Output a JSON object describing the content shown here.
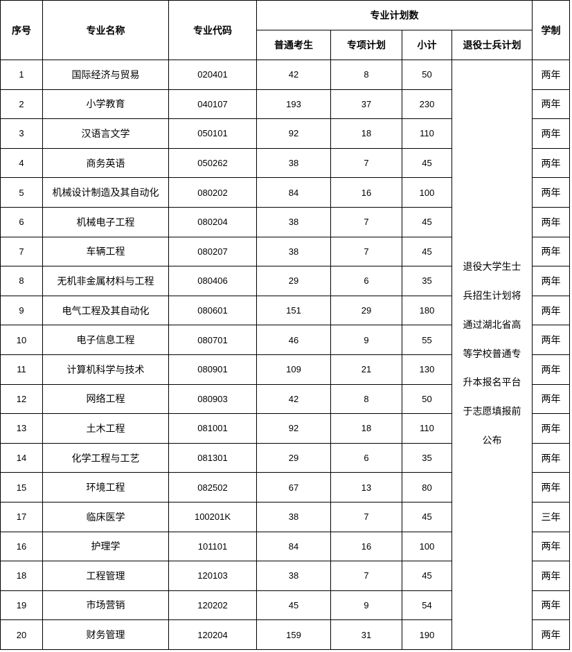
{
  "headers": {
    "index": "序号",
    "major_name": "专业名称",
    "major_code": "专业代码",
    "plan_group": "专业计划数",
    "regular": "普通考生",
    "special": "专项计划",
    "subtotal": "小计",
    "veteran": "退役士兵计划",
    "duration": "学制"
  },
  "veteran_note_lines": [
    "退役大学生士",
    "兵招生计划将",
    "通过湖北省高",
    "等学校普通专",
    "升本报名平台",
    "于志愿填报前",
    "公布"
  ],
  "rows": [
    {
      "index": "1",
      "name": "国际经济与贸易",
      "code": "020401",
      "regular": "42",
      "special": "8",
      "subtotal": "50",
      "duration": "两年"
    },
    {
      "index": "2",
      "name": "小学教育",
      "code": "040107",
      "regular": "193",
      "special": "37",
      "subtotal": "230",
      "duration": "两年"
    },
    {
      "index": "3",
      "name": "汉语言文学",
      "code": "050101",
      "regular": "92",
      "special": "18",
      "subtotal": "110",
      "duration": "两年"
    },
    {
      "index": "4",
      "name": "商务英语",
      "code": "050262",
      "regular": "38",
      "special": "7",
      "subtotal": "45",
      "duration": "两年"
    },
    {
      "index": "5",
      "name": "机械设计制造及其自动化",
      "code": "080202",
      "regular": "84",
      "special": "16",
      "subtotal": "100",
      "duration": "两年"
    },
    {
      "index": "6",
      "name": "机械电子工程",
      "code": "080204",
      "regular": "38",
      "special": "7",
      "subtotal": "45",
      "duration": "两年"
    },
    {
      "index": "7",
      "name": "车辆工程",
      "code": "080207",
      "regular": "38",
      "special": "7",
      "subtotal": "45",
      "duration": "两年"
    },
    {
      "index": "8",
      "name": "无机非金属材料与工程",
      "code": "080406",
      "regular": "29",
      "special": "6",
      "subtotal": "35",
      "duration": "两年"
    },
    {
      "index": "9",
      "name": "电气工程及其自动化",
      "code": "080601",
      "regular": "151",
      "special": "29",
      "subtotal": "180",
      "duration": "两年"
    },
    {
      "index": "10",
      "name": "电子信息工程",
      "code": "080701",
      "regular": "46",
      "special": "9",
      "subtotal": "55",
      "duration": "两年"
    },
    {
      "index": "11",
      "name": "计算机科学与技术",
      "code": "080901",
      "regular": "109",
      "special": "21",
      "subtotal": "130",
      "duration": "两年"
    },
    {
      "index": "12",
      "name": "网络工程",
      "code": "080903",
      "regular": "42",
      "special": "8",
      "subtotal": "50",
      "duration": "两年"
    },
    {
      "index": "13",
      "name": "土木工程",
      "code": "081001",
      "regular": "92",
      "special": "18",
      "subtotal": "110",
      "duration": "两年"
    },
    {
      "index": "14",
      "name": "化学工程与工艺",
      "code": "081301",
      "regular": "29",
      "special": "6",
      "subtotal": "35",
      "duration": "两年"
    },
    {
      "index": "15",
      "name": "环境工程",
      "code": "082502",
      "regular": "67",
      "special": "13",
      "subtotal": "80",
      "duration": "两年"
    },
    {
      "index": "17",
      "name": "临床医学",
      "code": "100201K",
      "regular": "38",
      "special": "7",
      "subtotal": "45",
      "duration": "三年"
    },
    {
      "index": "16",
      "name": "护理学",
      "code": "101101",
      "regular": "84",
      "special": "16",
      "subtotal": "100",
      "duration": "两年"
    },
    {
      "index": "18",
      "name": "工程管理",
      "code": "120103",
      "regular": "38",
      "special": "7",
      "subtotal": "45",
      "duration": "两年"
    },
    {
      "index": "19",
      "name": "市场营销",
      "code": "120202",
      "regular": "45",
      "special": "9",
      "subtotal": "54",
      "duration": "两年"
    },
    {
      "index": "20",
      "name": "财务管理",
      "code": "120204",
      "regular": "159",
      "special": "31",
      "subtotal": "190",
      "duration": "两年"
    }
  ]
}
